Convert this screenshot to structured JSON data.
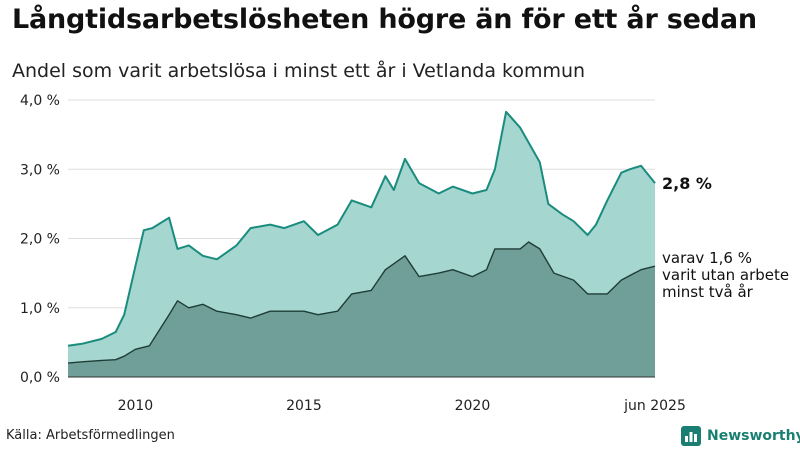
{
  "title": "Långtidsarbetslösheten högre än för ett år sedan",
  "subtitle": "Andel som varit arbetslösa i minst ett år i Vetlanda kommun",
  "source": "Källa: Arbetsförmedlingen",
  "brand": {
    "name": "Newsworthy",
    "icon": "bar-chart-icon",
    "color": "#1a7f72"
  },
  "colors": {
    "total_fill": "#a5d6cf",
    "total_line": "#1a8c7e",
    "long_fill": "#6f9f98",
    "long_line": "#1f3d38",
    "grid": "#dddddd"
  },
  "chart_data": {
    "type": "area",
    "title": "Långtidsarbetslösheten högre än för ett år sedan",
    "subtitle": "Andel som varit arbetslösa i minst ett år i Vetlanda kommun",
    "xlabel": "",
    "ylabel": "",
    "xlim": [
      "2008-01",
      "2025-06"
    ],
    "ylim": [
      0,
      4
    ],
    "y_ticks": [
      0,
      1,
      2,
      3,
      4
    ],
    "y_tick_labels": [
      "0,0 %",
      "1,0 %",
      "2,0 %",
      "3,0 %",
      "4,0 %"
    ],
    "x_tick_labels": [
      {
        "date": "2010-01",
        "label": "2010"
      },
      {
        "date": "2015-01",
        "label": "2015"
      },
      {
        "date": "2020-01",
        "label": "2020"
      },
      {
        "date": "2025-06",
        "label": "jun 2025"
      }
    ],
    "grid": true,
    "series": [
      {
        "key": "total",
        "end_label": "2,8 %",
        "points": [
          [
            "2008-01",
            0.45
          ],
          [
            "2008-06",
            0.48
          ],
          [
            "2009-01",
            0.55
          ],
          [
            "2009-06",
            0.65
          ],
          [
            "2009-09",
            0.9
          ],
          [
            "2010-01",
            1.6
          ],
          [
            "2010-04",
            2.12
          ],
          [
            "2010-07",
            2.15
          ],
          [
            "2011-01",
            2.3
          ],
          [
            "2011-04",
            1.85
          ],
          [
            "2011-08",
            1.9
          ],
          [
            "2012-01",
            1.75
          ],
          [
            "2012-06",
            1.7
          ],
          [
            "2013-01",
            1.9
          ],
          [
            "2013-06",
            2.15
          ],
          [
            "2014-01",
            2.2
          ],
          [
            "2014-06",
            2.15
          ],
          [
            "2015-01",
            2.25
          ],
          [
            "2015-06",
            2.05
          ],
          [
            "2016-01",
            2.2
          ],
          [
            "2016-06",
            2.55
          ],
          [
            "2017-01",
            2.45
          ],
          [
            "2017-06",
            2.9
          ],
          [
            "2017-09",
            2.7
          ],
          [
            "2018-01",
            3.15
          ],
          [
            "2018-06",
            2.8
          ],
          [
            "2019-01",
            2.65
          ],
          [
            "2019-06",
            2.75
          ],
          [
            "2020-01",
            2.65
          ],
          [
            "2020-06",
            2.7
          ],
          [
            "2020-09",
            3.0
          ],
          [
            "2021-01",
            3.83
          ],
          [
            "2021-06",
            3.6
          ],
          [
            "2022-01",
            3.1
          ],
          [
            "2022-04",
            2.5
          ],
          [
            "2022-09",
            2.35
          ],
          [
            "2023-01",
            2.25
          ],
          [
            "2023-06",
            2.05
          ],
          [
            "2023-09",
            2.2
          ],
          [
            "2024-01",
            2.55
          ],
          [
            "2024-06",
            2.95
          ],
          [
            "2024-09",
            3.0
          ],
          [
            "2025-01",
            3.05
          ],
          [
            "2025-06",
            2.8
          ]
        ]
      },
      {
        "key": "long",
        "end_label": [
          "varav 1,6 %",
          "varit utan arbete",
          "minst två år"
        ],
        "points": [
          [
            "2008-01",
            0.2
          ],
          [
            "2008-06",
            0.22
          ],
          [
            "2009-01",
            0.24
          ],
          [
            "2009-06",
            0.25
          ],
          [
            "2009-09",
            0.3
          ],
          [
            "2010-01",
            0.4
          ],
          [
            "2010-06",
            0.45
          ],
          [
            "2011-01",
            0.9
          ],
          [
            "2011-04",
            1.1
          ],
          [
            "2011-08",
            1.0
          ],
          [
            "2012-01",
            1.05
          ],
          [
            "2012-06",
            0.95
          ],
          [
            "2013-01",
            0.9
          ],
          [
            "2013-06",
            0.85
          ],
          [
            "2014-01",
            0.95
          ],
          [
            "2014-06",
            0.95
          ],
          [
            "2015-01",
            0.95
          ],
          [
            "2015-06",
            0.9
          ],
          [
            "2016-01",
            0.95
          ],
          [
            "2016-06",
            1.2
          ],
          [
            "2017-01",
            1.25
          ],
          [
            "2017-06",
            1.55
          ],
          [
            "2018-01",
            1.75
          ],
          [
            "2018-06",
            1.45
          ],
          [
            "2019-01",
            1.5
          ],
          [
            "2019-06",
            1.55
          ],
          [
            "2020-01",
            1.45
          ],
          [
            "2020-06",
            1.55
          ],
          [
            "2020-09",
            1.85
          ],
          [
            "2021-01",
            1.85
          ],
          [
            "2021-06",
            1.85
          ],
          [
            "2021-09",
            1.95
          ],
          [
            "2022-01",
            1.85
          ],
          [
            "2022-06",
            1.5
          ],
          [
            "2023-01",
            1.4
          ],
          [
            "2023-06",
            1.2
          ],
          [
            "2024-01",
            1.2
          ],
          [
            "2024-06",
            1.4
          ],
          [
            "2025-01",
            1.55
          ],
          [
            "2025-06",
            1.6
          ]
        ]
      }
    ]
  }
}
